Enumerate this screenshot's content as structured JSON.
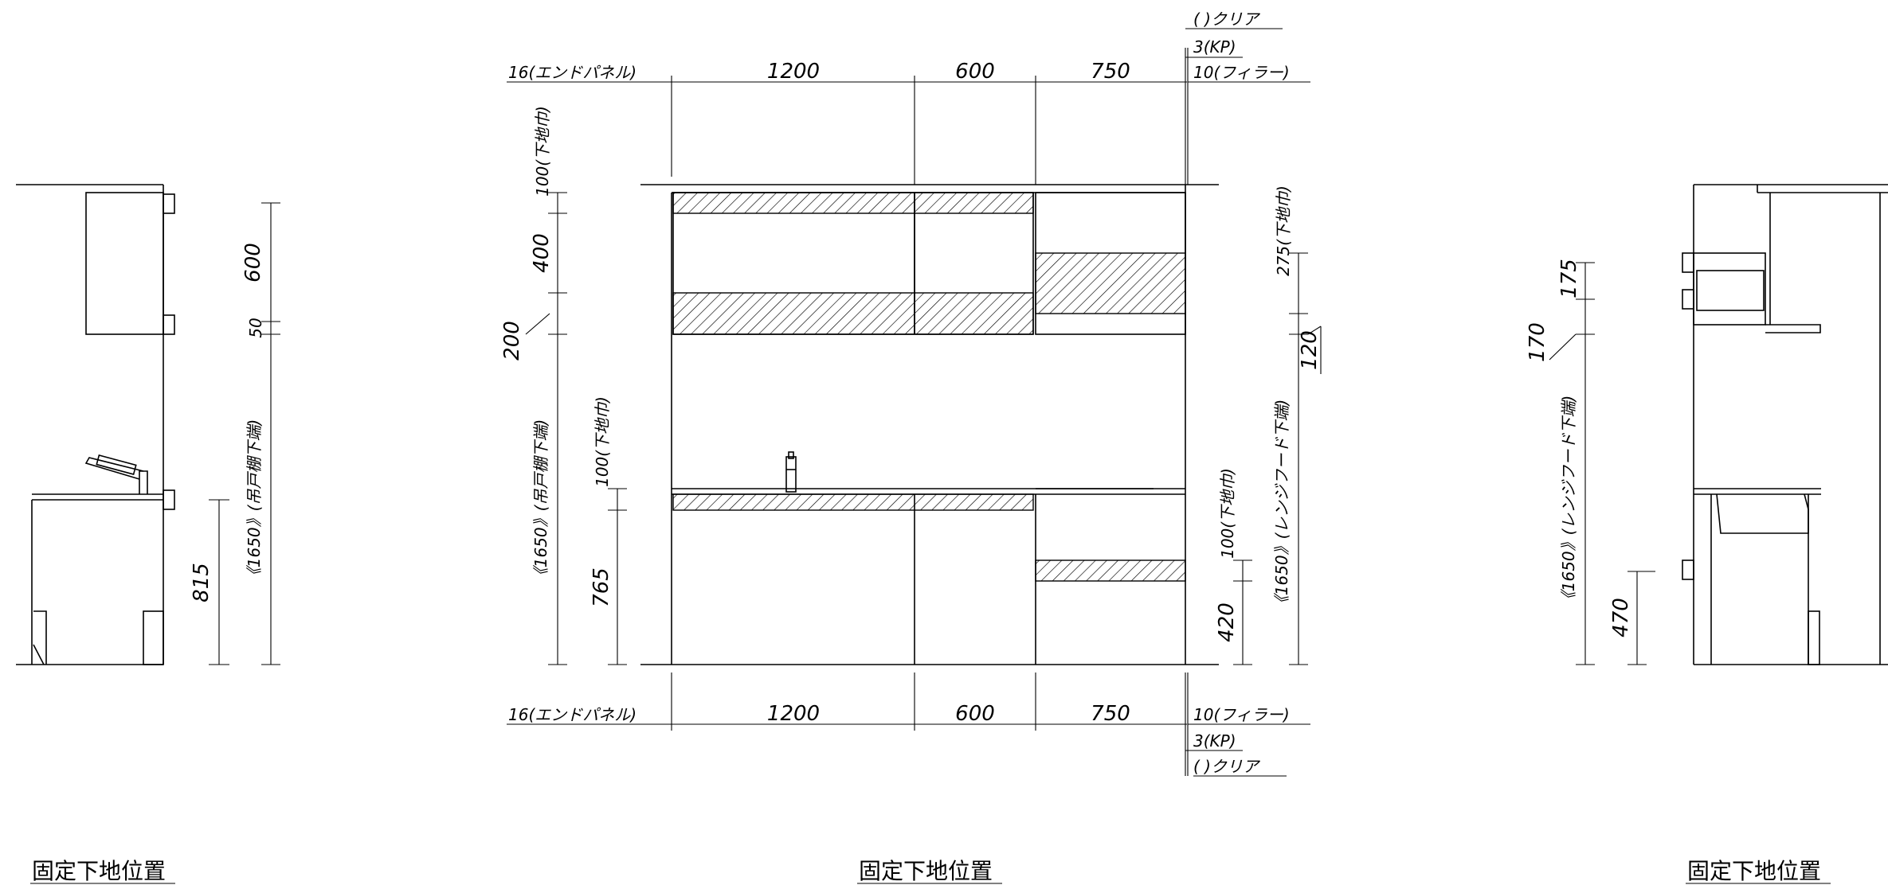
{
  "titles": {
    "left": "固定下地位置",
    "center": "固定下地位置",
    "right": "固定下地位置"
  },
  "front": {
    "top_dims": {
      "end_panel": "16(エンドパネル)",
      "w1": "1200",
      "w2": "600",
      "w3": "750",
      "filler": "10(フィラー)",
      "kp": "3(KP)",
      "clear": "(   )クリア"
    },
    "bottom_dims": {
      "end_panel": "16(エンドパネル)",
      "w1": "1200",
      "w2": "600",
      "w3": "750",
      "filler": "10(フィラー)",
      "kp": "3(KP)",
      "clear": "(   )クリア"
    },
    "left_dims": {
      "top_backing": "100(下地巾)",
      "h400": "400",
      "h200": "200",
      "wall_height": "《1650》(吊戸棚下端)",
      "counter_backing": "100(下地巾)",
      "h765": "765"
    },
    "right_dims": {
      "hood_backing": "275(下地巾)",
      "h120": "120",
      "hood_height": "《1650》(レンジフード下端)",
      "low_backing": "100(下地巾)",
      "h420": "420"
    }
  },
  "left_side": {
    "h600": "600",
    "h50": "50",
    "h1650": "《1650》(吊戸棚下端)",
    "h815": "815"
  },
  "right_side": {
    "h175": "175",
    "h170": "170",
    "h1650": "《1650》(レンジフード下端)",
    "h470": "470"
  }
}
